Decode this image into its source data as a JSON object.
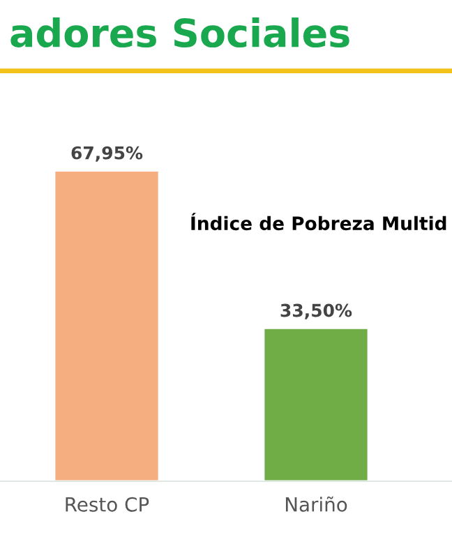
{
  "chart_data": {
    "type": "bar",
    "title": "adores Sociales",
    "subtitle": "Índice de Pobreza Multid",
    "categories": [
      "Resto CP",
      "Nariño"
    ],
    "values": [
      67.95,
      33.5
    ],
    "colors": [
      "#f4ae80",
      "#70ad47"
    ],
    "value_labels": [
      "67,95%",
      "33,50%"
    ],
    "grid": false,
    "legend": false
  }
}
